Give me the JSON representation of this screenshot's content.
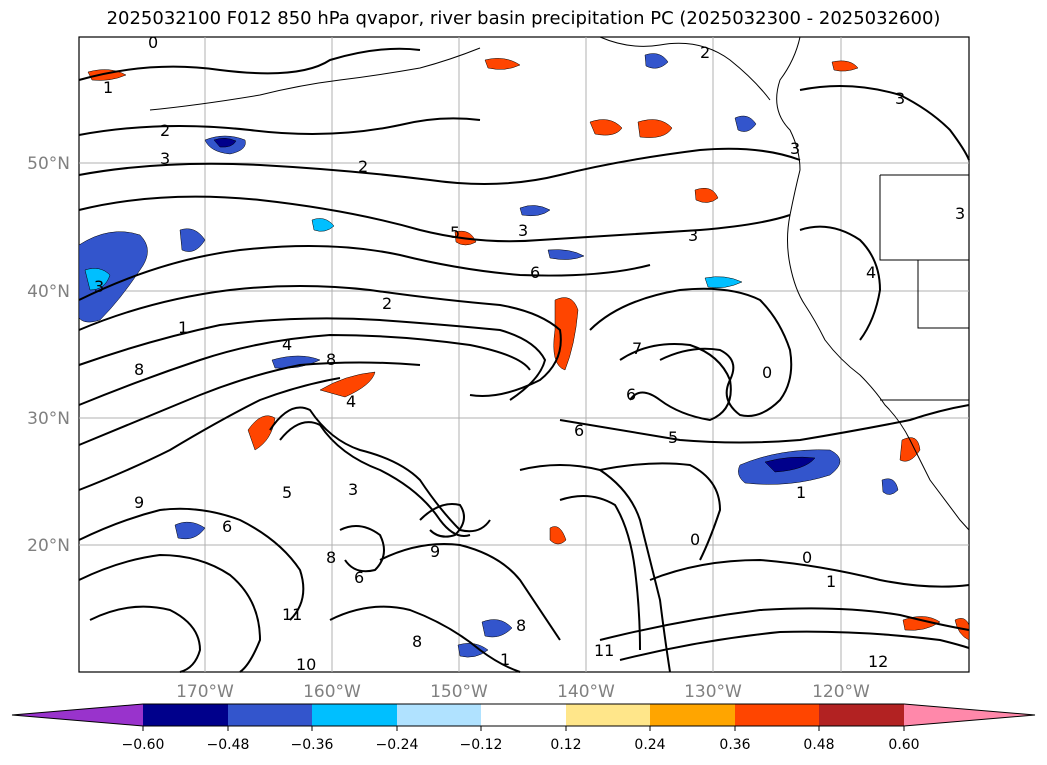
{
  "title": "2025032100 F012 850 hPa qvapor, river basin precipitation PC (2025032300 - 2025032600)",
  "map": {
    "lat_labels": [
      "50°N",
      "40°N",
      "30°N",
      "20°N"
    ],
    "lon_labels": [
      "170°W",
      "160°W",
      "150°W",
      "140°W",
      "130°W",
      "120°W"
    ],
    "gridlines": true,
    "contour_labels": [
      "0",
      "1",
      "2",
      "3",
      "2",
      "3",
      "5",
      "3",
      "6",
      "2",
      "1",
      "4",
      "8",
      "8",
      "3",
      "3",
      "4",
      "2",
      "3",
      "3",
      "7",
      "0",
      "6",
      "6",
      "5",
      "0",
      "1",
      "5",
      "9",
      "6",
      "8",
      "6",
      "9",
      "1",
      "8",
      "8",
      "11",
      "10",
      "11",
      "12",
      "0",
      "1",
      "4",
      "3"
    ]
  },
  "colorbar": {
    "ticks": [
      "−0.60",
      "−0.48",
      "−0.36",
      "−0.24",
      "−0.12",
      "0.12",
      "0.24",
      "0.36",
      "0.48",
      "0.60"
    ],
    "colors": [
      "#9933cc",
      "#00008b",
      "#3355cc",
      "#00bfff",
      "#b0e2ff",
      "#ffffff",
      "#ffe68a",
      "#ffa500",
      "#ff4500",
      "#b22222",
      "#ff88aa"
    ],
    "extend": "both"
  }
}
